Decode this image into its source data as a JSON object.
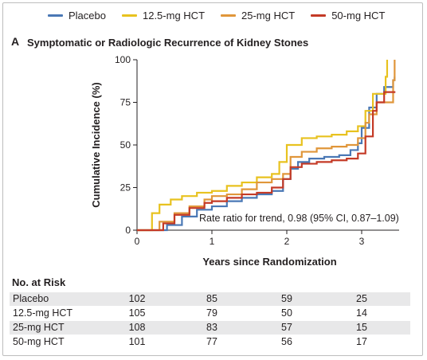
{
  "legend": [
    {
      "name": "Placebo",
      "color": "#4a78b5"
    },
    {
      "name": "12.5-mg HCT",
      "color": "#e8c21f"
    },
    {
      "name": "25-mg HCT",
      "color": "#e0963a"
    },
    {
      "name": "50-mg HCT",
      "color": "#c43a26"
    }
  ],
  "panel": {
    "letter": "A",
    "title": "Symptomatic or Radiologic Recurrence of Kidney Stones"
  },
  "annotation": "Rate ratio for trend, 0.98 (95% CI, 0.87–1.09)",
  "chart_data": {
    "type": "line",
    "title": "Symptomatic or Radiologic Recurrence of Kidney Stones",
    "xlabel": "Years since Randomization",
    "ylabel": "Cumulative Incidence (%)",
    "xlim": [
      0,
      3.5
    ],
    "ylim": [
      0,
      100
    ],
    "xticks": [
      0,
      1,
      2,
      3
    ],
    "yticks": [
      0,
      25,
      50,
      75,
      100
    ],
    "grid": false,
    "legend_position": "top",
    "series": [
      {
        "name": "Placebo",
        "color": "#4a78b5",
        "x": [
          0,
          0.25,
          0.4,
          0.6,
          0.8,
          1.0,
          1.2,
          1.4,
          1.6,
          1.8,
          1.95,
          2.05,
          2.15,
          2.3,
          2.5,
          2.7,
          2.85,
          2.95,
          3.0,
          3.1,
          3.2,
          3.3,
          3.35,
          3.42,
          3.44
        ],
        "y": [
          0,
          0,
          3,
          8,
          12,
          14,
          17,
          19,
          21,
          23,
          30,
          36,
          40,
          42,
          43,
          44,
          47,
          51,
          60,
          72,
          80,
          84,
          84,
          88,
          90
        ]
      },
      {
        "name": "12.5-mg HCT",
        "color": "#e8c21f",
        "x": [
          0,
          0.12,
          0.2,
          0.3,
          0.45,
          0.6,
          0.8,
          1.0,
          1.2,
          1.4,
          1.6,
          1.8,
          1.9,
          2.0,
          2.2,
          2.4,
          2.6,
          2.8,
          2.95,
          3.05,
          3.15,
          3.3,
          3.32,
          3.34
        ],
        "y": [
          0,
          0,
          10,
          15,
          18,
          20,
          22,
          23,
          26,
          28,
          31,
          33,
          40,
          50,
          54,
          55,
          56,
          58,
          61,
          70,
          80,
          80,
          90,
          100
        ]
      },
      {
        "name": "25-mg HCT",
        "color": "#e0963a",
        "x": [
          0,
          0.15,
          0.3,
          0.5,
          0.7,
          0.9,
          1.0,
          1.2,
          1.4,
          1.6,
          1.8,
          1.95,
          2.05,
          2.2,
          2.4,
          2.6,
          2.8,
          2.95,
          3.05,
          3.1,
          3.2,
          3.4,
          3.42,
          3.44
        ],
        "y": [
          0,
          0,
          5,
          10,
          14,
          18,
          20,
          21,
          24,
          28,
          30,
          33,
          43,
          46,
          48,
          49,
          50,
          54,
          63,
          68,
          75,
          75,
          88,
          100
        ]
      },
      {
        "name": "50-mg HCT",
        "color": "#c43a26",
        "x": [
          0,
          0.2,
          0.35,
          0.5,
          0.7,
          0.9,
          1.0,
          1.2,
          1.4,
          1.6,
          1.8,
          1.95,
          2.05,
          2.2,
          2.4,
          2.6,
          2.8,
          2.95,
          3.05,
          3.15,
          3.2,
          3.3,
          3.45
        ],
        "y": [
          0,
          0,
          4,
          9,
          13,
          16,
          17,
          19,
          21,
          22,
          25,
          30,
          37,
          39,
          40,
          41,
          42,
          45,
          55,
          70,
          75,
          81,
          81
        ]
      }
    ]
  },
  "risk_table": {
    "title": "No. at Risk",
    "timepoints": [
      0,
      1,
      2,
      3
    ],
    "rows": [
      {
        "label": "Placebo",
        "values": [
          "102",
          "85",
          "59",
          "25"
        ]
      },
      {
        "label": "12.5-mg HCT",
        "values": [
          "105",
          "79",
          "50",
          "14"
        ]
      },
      {
        "label": "25-mg HCT",
        "values": [
          "108",
          "83",
          "57",
          "15"
        ]
      },
      {
        "label": "50-mg HCT",
        "values": [
          "101",
          "77",
          "56",
          "17"
        ]
      }
    ]
  }
}
